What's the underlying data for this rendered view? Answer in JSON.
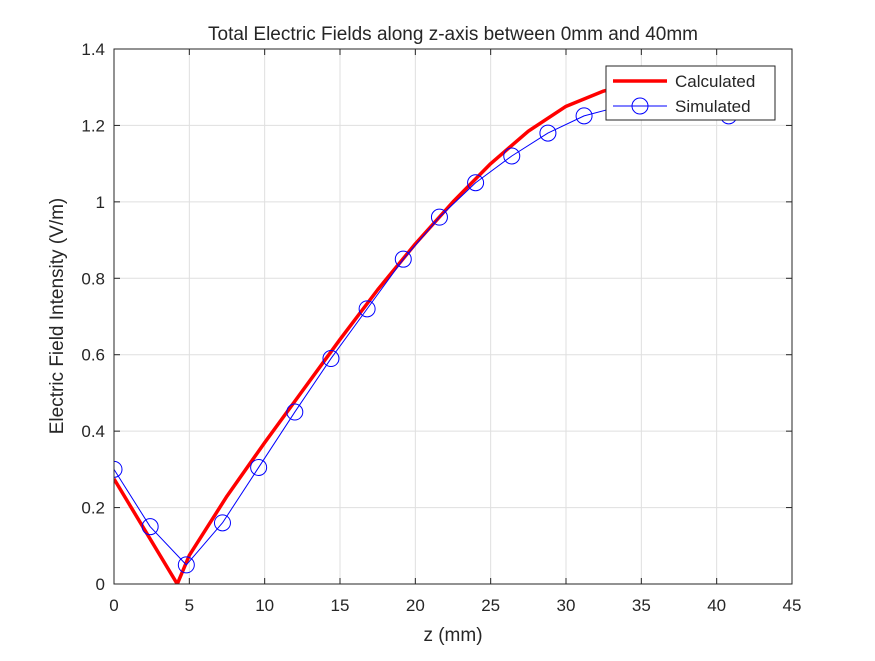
{
  "chart_data": {
    "type": "line",
    "title": "Total Electric Fields along z-axis between 0mm and 40mm",
    "xlabel": "z (mm)",
    "ylabel": "Electric Field Intensity (V/m)",
    "xlim": [
      0,
      45
    ],
    "ylim": [
      0,
      1.4
    ],
    "xticks": [
      0,
      5,
      10,
      15,
      20,
      25,
      30,
      35,
      40,
      45
    ],
    "yticks": [
      0,
      0.2,
      0.4,
      0.6,
      0.8,
      1,
      1.2,
      1.4
    ],
    "xtick_labels": [
      "0",
      "5",
      "10",
      "15",
      "20",
      "25",
      "30",
      "35",
      "40",
      "45"
    ],
    "ytick_labels": [
      "0",
      "0.2",
      "0.4",
      "0.6",
      "0.8",
      "1",
      "1.2",
      "1.4"
    ],
    "grid": true,
    "legend_position": "top-right",
    "series": [
      {
        "name": "Calculated",
        "color": "#ff0000",
        "marker": "none",
        "x": [
          0,
          4.2,
          5,
          7.5,
          10,
          12.5,
          15,
          17.5,
          20,
          22.5,
          25,
          27.5,
          30,
          32.5,
          35,
          37.5,
          40,
          40.8
        ],
        "y": [
          0.275,
          0.0,
          0.075,
          0.23,
          0.37,
          0.505,
          0.64,
          0.77,
          0.89,
          1.0,
          1.1,
          1.185,
          1.25,
          1.29,
          1.315,
          1.32,
          1.31,
          1.305
        ]
      },
      {
        "name": "Simulated",
        "color": "#0000ff",
        "marker": "circle",
        "x": [
          0,
          2.4,
          4.8,
          7.2,
          9.6,
          12.0,
          14.4,
          16.8,
          19.2,
          21.6,
          24.0,
          26.4,
          28.8,
          31.2,
          33.6,
          36.0,
          38.4,
          40.8
        ],
        "y": [
          0.3,
          0.15,
          0.05,
          0.16,
          0.305,
          0.45,
          0.59,
          0.72,
          0.85,
          0.96,
          1.05,
          1.12,
          1.18,
          1.225,
          1.25,
          1.26,
          1.25,
          1.225
        ]
      }
    ]
  }
}
